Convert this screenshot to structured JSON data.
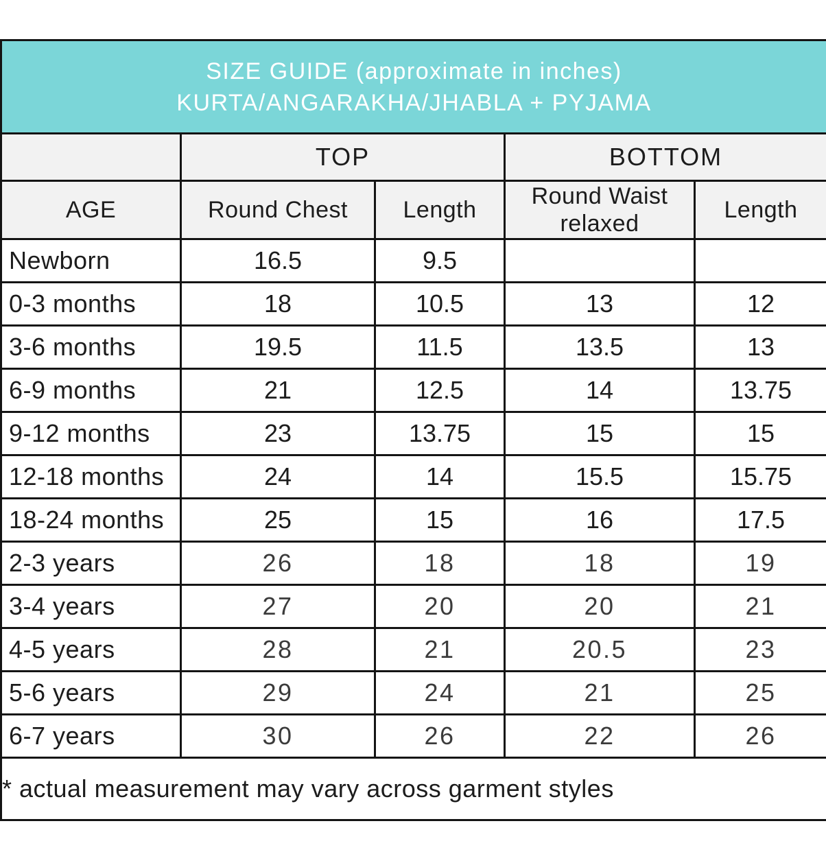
{
  "title": {
    "line1": "SIZE GUIDE (approximate in inches)",
    "line2": "KURTA/ANGARAKHA/JHABLA + PYJAMA"
  },
  "group_headers": {
    "top": "TOP",
    "bottom": "BOTTOM"
  },
  "column_headers": {
    "age": "AGE",
    "round_chest": "Round Chest",
    "top_length": "Length",
    "round_waist": "Round Waist relaxed",
    "bottom_length": "Length"
  },
  "rows": [
    {
      "age": "Newborn",
      "round_chest": "16.5",
      "top_length": "9.5",
      "round_waist": "",
      "bottom_length": ""
    },
    {
      "age": "0-3 months",
      "round_chest": "18",
      "top_length": "10.5",
      "round_waist": "13",
      "bottom_length": "12"
    },
    {
      "age": "3-6 months",
      "round_chest": "19.5",
      "top_length": "11.5",
      "round_waist": "13.5",
      "bottom_length": "13"
    },
    {
      "age": "6-9 months",
      "round_chest": "21",
      "top_length": "12.5",
      "round_waist": "14",
      "bottom_length": "13.75"
    },
    {
      "age": "9-12 months",
      "round_chest": "23",
      "top_length": "13.75",
      "round_waist": "15",
      "bottom_length": "15"
    },
    {
      "age": "12-18 months",
      "round_chest": "24",
      "top_length": "14",
      "round_waist": "15.5",
      "bottom_length": "15.75"
    },
    {
      "age": "18-24 months",
      "round_chest": "25",
      "top_length": "15",
      "round_waist": "16",
      "bottom_length": "17.5"
    },
    {
      "age": "2-3 years",
      "round_chest": "26",
      "top_length": "18",
      "round_waist": "18",
      "bottom_length": "19"
    },
    {
      "age": "3-4 years",
      "round_chest": "27",
      "top_length": "20",
      "round_waist": "20",
      "bottom_length": "21"
    },
    {
      "age": "4-5 years",
      "round_chest": "28",
      "top_length": "21",
      "round_waist": "20.5",
      "bottom_length": "23"
    },
    {
      "age": "5-6 years",
      "round_chest": "29",
      "top_length": "24",
      "round_waist": "21",
      "bottom_length": "25"
    },
    {
      "age": "6-7 years",
      "round_chest": "30",
      "top_length": "26",
      "round_waist": "22",
      "bottom_length": "26"
    }
  ],
  "footnote": "* actual measurement may vary across garment styles",
  "colors": {
    "title_band_bg": "#7bd6d8",
    "title_band_text": "#ffffff",
    "header_row_bg": "#f2f2f2",
    "border": "#141414",
    "text": "#1c1c1c",
    "rounded_value_text": "#3b3b3b",
    "page_bg": "#ffffff"
  }
}
